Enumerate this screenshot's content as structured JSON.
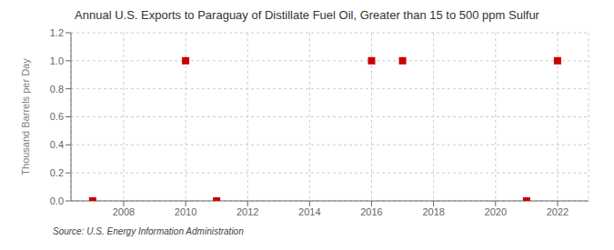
{
  "chart_data": {
    "type": "scatter",
    "title": "Annual U.S. Exports to Paraguay of Distillate Fuel Oil, Greater than 15 to 500 ppm Sulfur",
    "ylabel": "Thousand Barrels per Day",
    "source": "Source: U.S. Energy Information Administration",
    "x": [
      2007,
      2010,
      2011,
      2016,
      2017,
      2021,
      2022
    ],
    "values": [
      0.0,
      1.0,
      0.0,
      1.0,
      1.0,
      0.0,
      1.0
    ],
    "color": "#cc0000",
    "marker": "square",
    "xlim": [
      2006.3,
      2023.0
    ],
    "xticks": [
      2008,
      2010,
      2012,
      2014,
      2016,
      2018,
      2020,
      2022
    ],
    "ylim": [
      0.0,
      1.2
    ],
    "yticks": [
      {
        "value": 0,
        "label": "0.0"
      },
      0.2,
      0.4,
      0.6,
      0.8,
      {
        "value": 1,
        "label": "1.0"
      },
      1.2
    ],
    "grid": true
  }
}
